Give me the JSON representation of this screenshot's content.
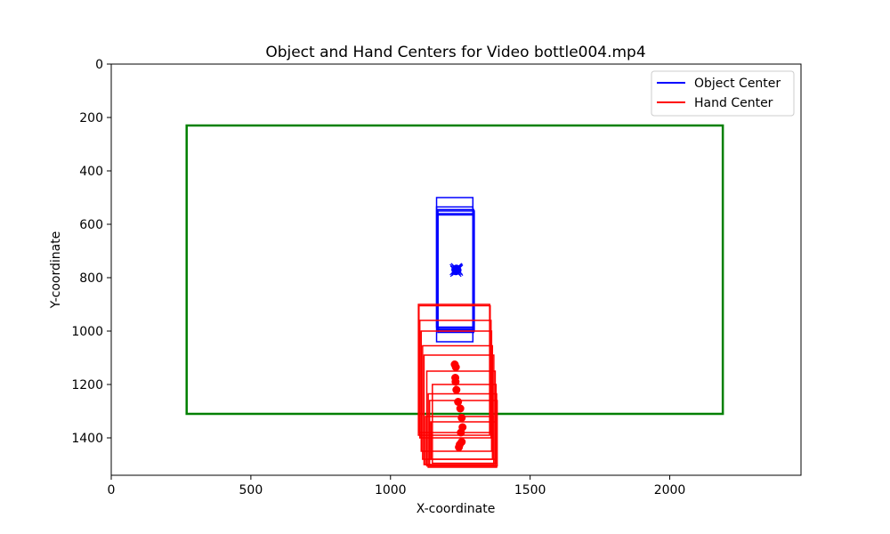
{
  "chart_data": {
    "type": "scatter",
    "title": "Object and Hand Centers for Video bottle004.mp4",
    "xlabel": "X-coordinate",
    "ylabel": "Y-coordinate",
    "xlim": [
      0,
      2470
    ],
    "ylim": [
      1540,
      0
    ],
    "y_inverted": true,
    "grid": false,
    "legend_position": "top-right",
    "x_ticks": [
      0,
      500,
      1000,
      1500,
      2000
    ],
    "y_ticks": [
      0,
      200,
      400,
      600,
      800,
      1000,
      1200,
      1400
    ],
    "legend": [
      {
        "label": "Object Center",
        "color": "#0000ff"
      },
      {
        "label": "Hand Center",
        "color": "#ff0000"
      }
    ],
    "frame_box": {
      "color": "#008000",
      "x0": 270,
      "y0": 230,
      "x1": 2190,
      "y1": 1310
    },
    "series": [
      {
        "name": "Object Center",
        "color": "#0000ff",
        "points": [
          {
            "x": 1232,
            "y": 770
          },
          {
            "x": 1236,
            "y": 766
          },
          {
            "x": 1240,
            "y": 772
          },
          {
            "x": 1234,
            "y": 776
          },
          {
            "x": 1238,
            "y": 768
          }
        ],
        "boxes": [
          {
            "x0": 1165,
            "y0": 500,
            "x1": 1295,
            "y1": 1040
          },
          {
            "x0": 1165,
            "y0": 535,
            "x1": 1295,
            "y1": 985
          },
          {
            "x0": 1168,
            "y0": 545,
            "x1": 1298,
            "y1": 995
          },
          {
            "x0": 1170,
            "y0": 550,
            "x1": 1300,
            "y1": 1000
          },
          {
            "x0": 1170,
            "y0": 565,
            "x1": 1298,
            "y1": 1005
          },
          {
            "x0": 1167,
            "y0": 560,
            "x1": 1297,
            "y1": 990
          }
        ]
      },
      {
        "name": "Hand Center",
        "color": "#ff0000",
        "points": [
          {
            "x": 1230,
            "y": 1125
          },
          {
            "x": 1234,
            "y": 1135
          },
          {
            "x": 1232,
            "y": 1175
          },
          {
            "x": 1233,
            "y": 1190
          },
          {
            "x": 1236,
            "y": 1220
          },
          {
            "x": 1242,
            "y": 1265
          },
          {
            "x": 1250,
            "y": 1290
          },
          {
            "x": 1255,
            "y": 1325
          },
          {
            "x": 1258,
            "y": 1360
          },
          {
            "x": 1252,
            "y": 1380
          },
          {
            "x": 1255,
            "y": 1415
          },
          {
            "x": 1248,
            "y": 1425
          },
          {
            "x": 1245,
            "y": 1435
          }
        ],
        "boxes": [
          {
            "x0": 1100,
            "y0": 900,
            "x1": 1355,
            "y1": 1390
          },
          {
            "x0": 1102,
            "y0": 905,
            "x1": 1357,
            "y1": 1380
          },
          {
            "x0": 1105,
            "y0": 960,
            "x1": 1360,
            "y1": 1400
          },
          {
            "x0": 1110,
            "y0": 1000,
            "x1": 1362,
            "y1": 1450
          },
          {
            "x0": 1115,
            "y0": 1055,
            "x1": 1365,
            "y1": 1480
          },
          {
            "x0": 1120,
            "y0": 1090,
            "x1": 1370,
            "y1": 1500
          },
          {
            "x0": 1130,
            "y0": 1150,
            "x1": 1375,
            "y1": 1505
          },
          {
            "x0": 1135,
            "y0": 1235,
            "x1": 1380,
            "y1": 1510
          },
          {
            "x0": 1140,
            "y0": 1260,
            "x1": 1382,
            "y1": 1505
          },
          {
            "x0": 1125,
            "y0": 1320,
            "x1": 1370,
            "y1": 1500
          },
          {
            "x0": 1150,
            "y0": 1200,
            "x1": 1378,
            "y1": 1495
          },
          {
            "x0": 1145,
            "y0": 1340,
            "x1": 1380,
            "y1": 1480
          }
        ]
      }
    ]
  }
}
